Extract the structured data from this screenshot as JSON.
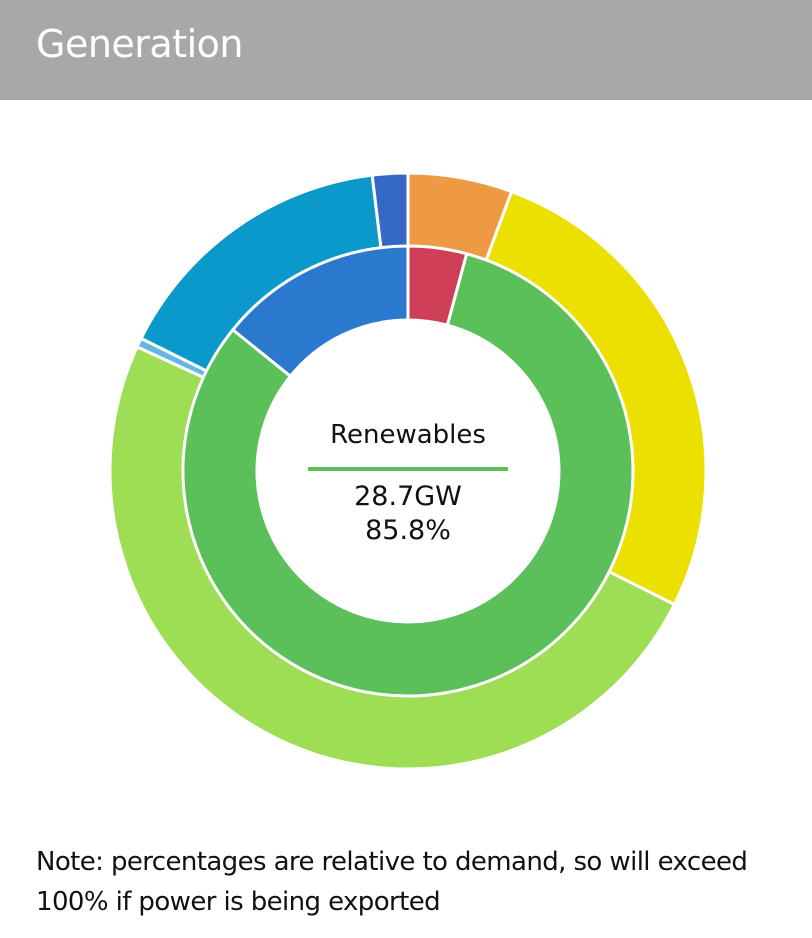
{
  "header": {
    "title": "Generation"
  },
  "chart_data": {
    "type": "donut",
    "center": {
      "label": "Renewables",
      "value": "28.7GW",
      "percent": "85.8%"
    },
    "inner_ring": {
      "slices": [
        {
          "value": 4.2,
          "color": "#cf3f57"
        },
        {
          "value": 81.6,
          "color": "#5bbf5a"
        },
        {
          "value": 14.2,
          "color": "#2b78cf"
        }
      ]
    },
    "outer_ring": {
      "slices": [
        {
          "value": 5.6,
          "color": "#ee9a44"
        },
        {
          "value": 26.5,
          "color": "#ece001"
        },
        {
          "value": 49.0,
          "color": "#9ede55"
        },
        {
          "value": 0.5,
          "color": "#62b8e0"
        },
        {
          "value": 15.6,
          "color": "#0b99cc"
        },
        {
          "value": 1.9,
          "color": "#3567c4"
        }
      ]
    }
  },
  "footer": {
    "note": "Note: percentages are relative to demand, so will exceed 100% if power is being exported"
  }
}
